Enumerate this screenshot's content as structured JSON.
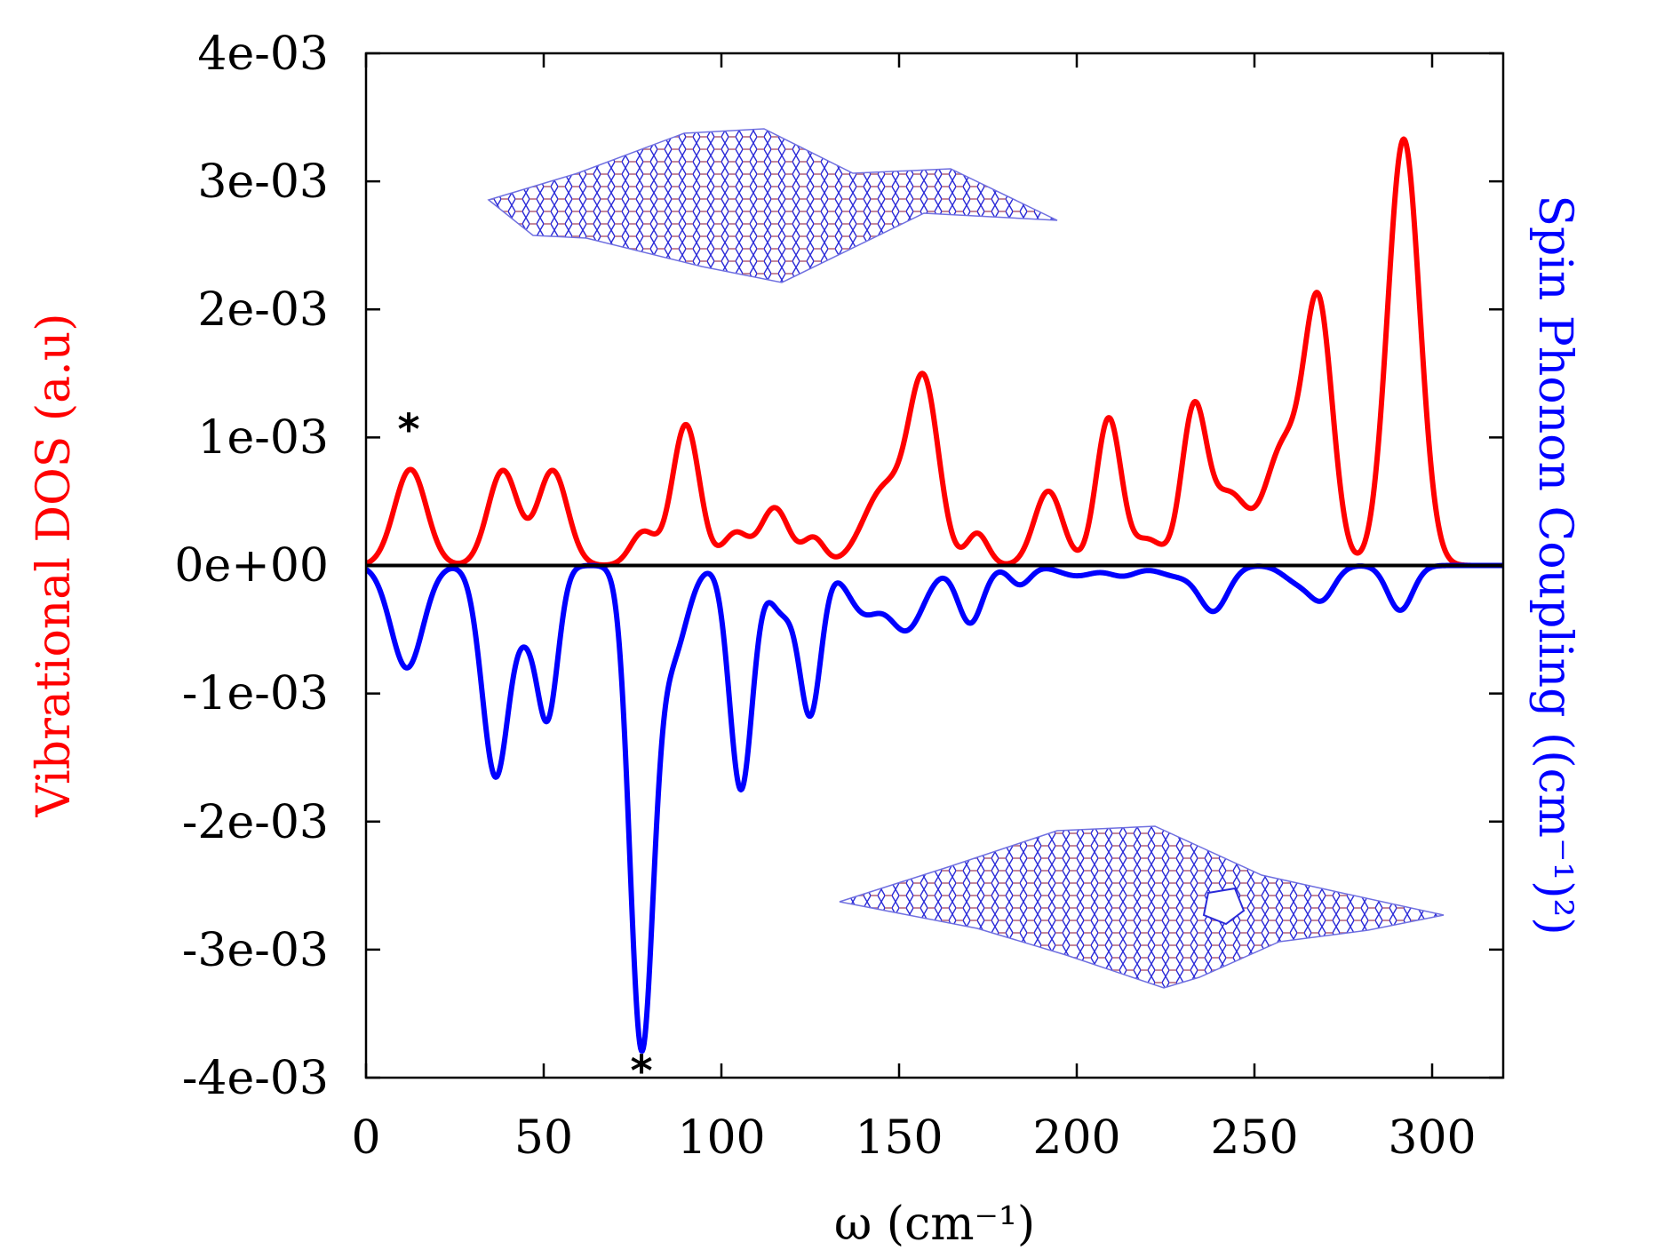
{
  "chart_data": {
    "type": "line",
    "xlabel": "ω (cm⁻¹)",
    "ylabel_left": "Vibrational DOS (a.u)",
    "ylabel_right": "Spin Phonon Coupling ((cm⁻¹)²)",
    "xlim": [
      0,
      320
    ],
    "ylim": [
      -0.004,
      0.004
    ],
    "x_ticks": [
      0,
      50,
      100,
      150,
      200,
      250,
      300
    ],
    "x_tick_labels": [
      "0",
      "50",
      "100",
      "150",
      "200",
      "250",
      "300"
    ],
    "y_ticks": [
      0.004,
      0.003,
      0.002,
      0.001,
      0,
      -0.001,
      -0.002,
      -0.003,
      -0.004
    ],
    "y_tick_labels": [
      "4e-03",
      "3e-03",
      "2e-03",
      "1e-03",
      "0e+00",
      "-1e-03",
      "-2e-03",
      "-3e-03",
      "-4e-03"
    ],
    "grid": false,
    "colors": {
      "dos": "#ff0000",
      "spc": "#0000ff",
      "zero_line": "#000000"
    },
    "annotations": [
      {
        "text": "*",
        "x": 12,
        "y": 0.00112
      },
      {
        "text": "*",
        "x": 77.5,
        "y": -0.00395
      }
    ],
    "insets": [
      "pristine graphene sheet (top)",
      "graphene sheet with vacancy defect (bottom)"
    ],
    "series": [
      {
        "name": "Vibrational DOS",
        "color": "#ff0000",
        "peaks": [
          [
            12.5,
            0.00075,
            4.5
          ],
          [
            38.5,
            0.00074,
            4.2
          ],
          [
            52.5,
            0.00074,
            4.2
          ],
          [
            78,
            0.00026,
            3.5
          ],
          [
            90,
            0.0011,
            3.8
          ],
          [
            104,
            0.00025,
            3.5
          ],
          [
            115,
            0.00045,
            4
          ],
          [
            126,
            0.00021,
            3
          ],
          [
            146,
            0.0006,
            6
          ],
          [
            157,
            0.00138,
            4.2
          ],
          [
            172,
            0.00025,
            3
          ],
          [
            192,
            0.00058,
            4
          ],
          [
            209,
            0.00115,
            3.5
          ],
          [
            220,
            0.0002,
            4
          ],
          [
            233,
            0.0012,
            3.5
          ],
          [
            243,
            0.00055,
            5
          ],
          [
            258,
            0.0009,
            5
          ],
          [
            268,
            0.002,
            4
          ],
          [
            292,
            0.00333,
            4.5
          ]
        ]
      },
      {
        "name": "Spin Phonon Coupling",
        "color": "#0000ff",
        "peaks": [
          [
            11.5,
            -0.0008,
            4.5
          ],
          [
            36.5,
            -0.00165,
            3.8
          ],
          [
            45,
            -0.00035,
            2.8
          ],
          [
            51,
            -0.00118,
            3
          ],
          [
            77.5,
            -0.0037,
            3.3
          ],
          [
            86,
            -0.0007,
            4.2
          ],
          [
            105.5,
            -0.00175,
            3.2
          ],
          [
            117,
            -0.00035,
            3.5
          ],
          [
            125,
            -0.00115,
            3
          ],
          [
            140,
            -0.00035,
            4.5
          ],
          [
            152,
            -0.0005,
            5
          ],
          [
            170,
            -0.00045,
            3.5
          ],
          [
            184,
            -0.00015,
            3
          ],
          [
            200,
            -8e-05,
            5
          ],
          [
            213,
            -8e-05,
            4
          ],
          [
            228,
            -8e-05,
            5
          ],
          [
            238.5,
            -0.00035,
            4
          ],
          [
            262,
            -0.00012,
            4
          ],
          [
            269,
            -0.00025,
            3.5
          ],
          [
            291,
            -0.00035,
            3.5
          ]
        ]
      }
    ]
  }
}
